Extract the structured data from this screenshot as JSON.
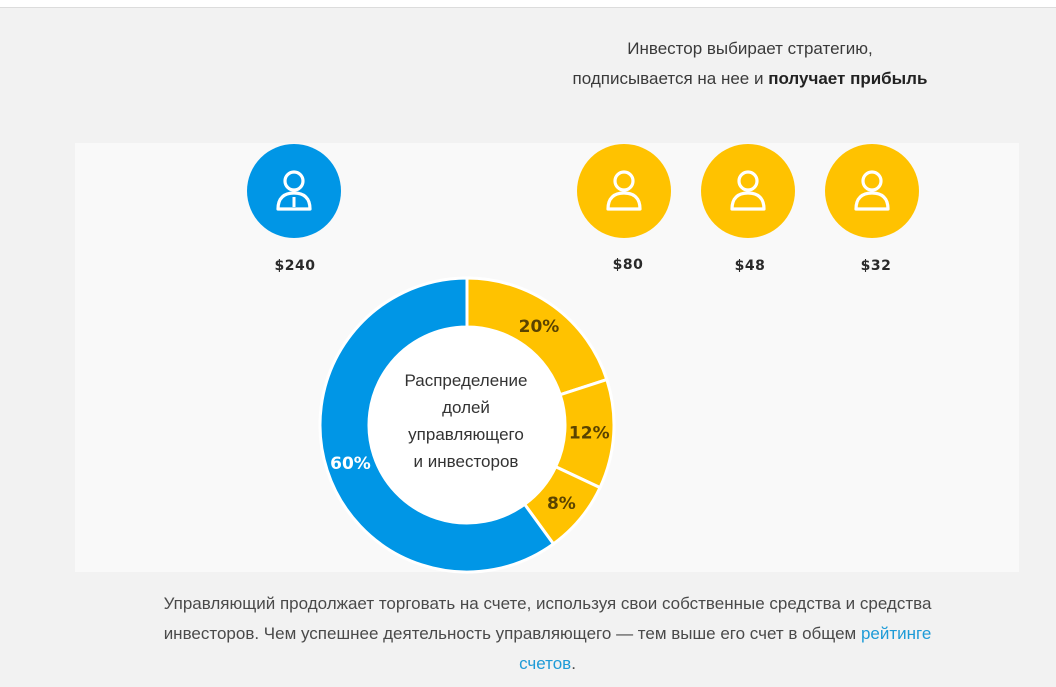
{
  "intro": {
    "line1": "Инвестор выбирает стратегию,",
    "line2_prefix": "подписывается на нее и ",
    "line2_bold": "получает прибыль"
  },
  "colors": {
    "manager": "#0096e6",
    "investor": "#ffc200",
    "panel": "#f9f9f9"
  },
  "people": [
    {
      "role": "manager",
      "icon": "manager-user-icon",
      "amount": "$240"
    },
    {
      "role": "investor",
      "icon": "user-icon",
      "amount": "$80"
    },
    {
      "role": "investor",
      "icon": "user-icon",
      "amount": "$48"
    },
    {
      "role": "investor",
      "icon": "user-icon",
      "amount": "$32"
    }
  ],
  "chart_data": {
    "type": "pie",
    "donut": true,
    "title": "Распределение долей управляющего и инвесторов",
    "title_lines": [
      "Распределение",
      "долей",
      "управляющего",
      "и инвесторов"
    ],
    "slices": [
      {
        "label": "20%",
        "value": 20,
        "color": "#ffc200"
      },
      {
        "label": "12%",
        "value": 12,
        "color": "#ffc200"
      },
      {
        "label": "8%",
        "value": 8,
        "color": "#ffc200"
      },
      {
        "label": "60%",
        "value": 60,
        "color": "#0096e6"
      }
    ]
  },
  "footer": {
    "text": "Управляющий продолжает торговать на счете, используя свои собственные средства и средства инвесторов. Чем успешнее деятельность управляющего — тем выше его счет в общем ",
    "link": "рейтинге счетов",
    "end": "."
  }
}
